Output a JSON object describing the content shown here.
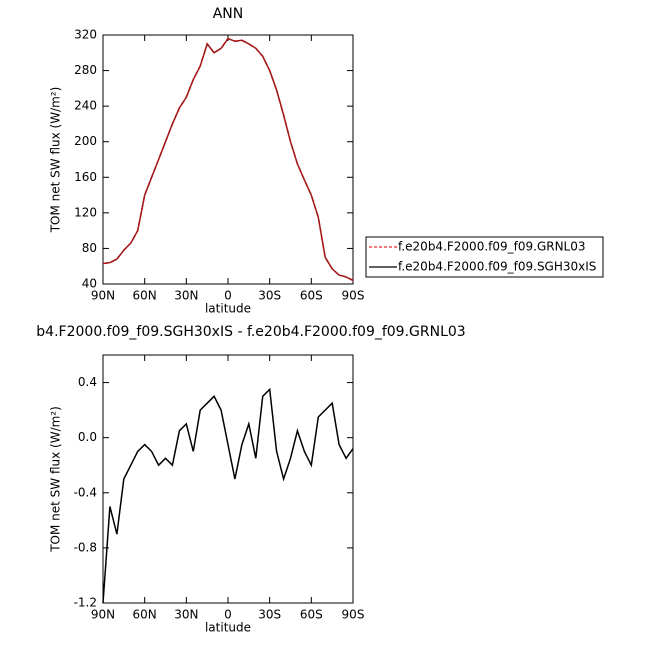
{
  "chart_data": [
    {
      "type": "line",
      "title": "ANN",
      "x_label": "latitude",
      "y_label": "TOM net SW flux (W/m²)",
      "x": [
        90,
        85,
        80,
        75,
        70,
        65,
        60,
        55,
        50,
        45,
        40,
        35,
        30,
        25,
        20,
        15,
        10,
        5,
        0,
        -5,
        -10,
        -15,
        -20,
        -25,
        -30,
        -35,
        -40,
        -45,
        -50,
        -55,
        -60,
        -65,
        -70,
        -75,
        -80,
        -85,
        -90
      ],
      "series": [
        {
          "name": "f.e20b4.F2000.f09_f09.GRNL03",
          "color": "#e8262a",
          "dash": true,
          "values": [
            63,
            64,
            68,
            78,
            86,
            100,
            140,
            160,
            180,
            200,
            220,
            238,
            250,
            270,
            285,
            310,
            300,
            305,
            316,
            313,
            314,
            310,
            305,
            296,
            280,
            258,
            230,
            200,
            175,
            157,
            140,
            115,
            70,
            57,
            50,
            48,
            44
          ]
        },
        {
          "name": "f.e20b4.F2000.f09_f09.SGH30xIS",
          "color": "#000000",
          "dash": false,
          "values": [
            63,
            64,
            68,
            78,
            86,
            100,
            140,
            160,
            180,
            200,
            220,
            238,
            250,
            270,
            285,
            310,
            300,
            305,
            316,
            313,
            314,
            310,
            305,
            296,
            280,
            258,
            230,
            200,
            175,
            157,
            140,
            115,
            70,
            57,
            50,
            48,
            44
          ]
        }
      ],
      "line_color": "#a01818",
      "xlim": [
        90,
        -90
      ],
      "xticks": [
        {
          "value": 90,
          "label": "90N"
        },
        {
          "value": 60,
          "label": "60N"
        },
        {
          "value": 30,
          "label": "30N"
        },
        0,
        {
          "value": -30,
          "label": "30S"
        },
        {
          "value": -60,
          "label": "60S"
        },
        {
          "value": -90,
          "label": "90S"
        }
      ],
      "ylim": [
        40,
        320
      ],
      "yticks": [
        40,
        80,
        120,
        160,
        200,
        240,
        280,
        320
      ],
      "legend": "right"
    },
    {
      "type": "line",
      "title": "b4.F2000.f09_f09.SGH30xIS - f.e20b4.F2000.f09_f09.GRNL03",
      "x_label": "latitude",
      "y_label": "TOM net SW flux (W/m²)",
      "x": [
        90,
        85,
        80,
        75,
        70,
        65,
        60,
        55,
        50,
        45,
        40,
        35,
        30,
        25,
        20,
        15,
        10,
        5,
        0,
        -5,
        -10,
        -15,
        -20,
        -25,
        -30,
        -35,
        -40,
        -45,
        -50,
        -55,
        -60,
        -65,
        -70,
        -75,
        -80,
        -85,
        -90
      ],
      "values": [
        -1.2,
        -0.5,
        -0.7,
        -0.3,
        -0.2,
        -0.1,
        -0.05,
        -0.1,
        -0.2,
        -0.15,
        -0.2,
        0.05,
        0.1,
        -0.1,
        0.2,
        0.25,
        0.3,
        0.2,
        -0.05,
        -0.3,
        -0.05,
        0.1,
        -0.15,
        0.3,
        0.35,
        -0.1,
        -0.3,
        -0.15,
        0.05,
        -0.1,
        -0.2,
        0.15,
        0.2,
        0.25,
        -0.05,
        -0.15,
        -0.08
      ],
      "color": "#000000",
      "xlim": [
        90,
        -90
      ],
      "xticks": [
        {
          "value": 90,
          "label": "90N"
        },
        {
          "value": 60,
          "label": "60N"
        },
        {
          "value": 30,
          "label": "30N"
        },
        0,
        {
          "value": -30,
          "label": "30S"
        },
        {
          "value": -60,
          "label": "60S"
        },
        {
          "value": -90,
          "label": "90S"
        }
      ],
      "ylim": [
        -1.2,
        0.6
      ],
      "yticks": [
        -1.2,
        -0.8,
        -0.4,
        {
          "value": 0,
          "label": "0.0"
        },
        0.4
      ]
    }
  ]
}
